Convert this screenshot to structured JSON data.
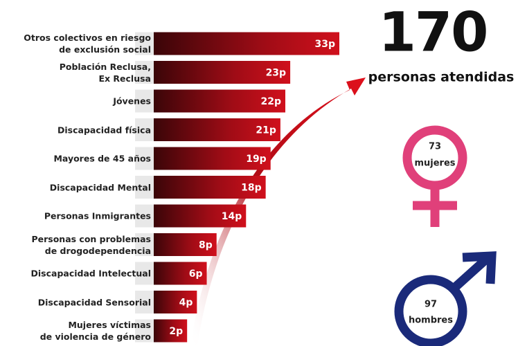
{
  "chart_data": {
    "type": "bar",
    "categories": [
      "Otros colectivos en riesgo\nde exclusión social",
      "Población Reclusa,\nEx Reclusa",
      "Jóvenes",
      "Discapacidad física",
      "Mayores de 45 años",
      "Discapacidad Mental",
      "Personas Inmigrantes",
      "Personas con problemas\nde drogodependencia",
      "Discapacidad Intelectual",
      "Discapacidad Sensorial",
      "Mujeres víctimas\nde violencia de género"
    ],
    "values": [
      33,
      23,
      22,
      21,
      19,
      18,
      14,
      8,
      6,
      4,
      2
    ],
    "value_labels": [
      "33p",
      "23p",
      "22p",
      "21p",
      "19p",
      "18p",
      "14p",
      "8p",
      "6p",
      "4p",
      "2p"
    ],
    "color": "#d0101c"
  },
  "total": {
    "number": "170",
    "label": "personas atendidas"
  },
  "women": {
    "number": "73",
    "label": "mujeres",
    "color": "#e0407a"
  },
  "men": {
    "number": "97",
    "label": "hombres",
    "color": "#1a2a7a"
  }
}
